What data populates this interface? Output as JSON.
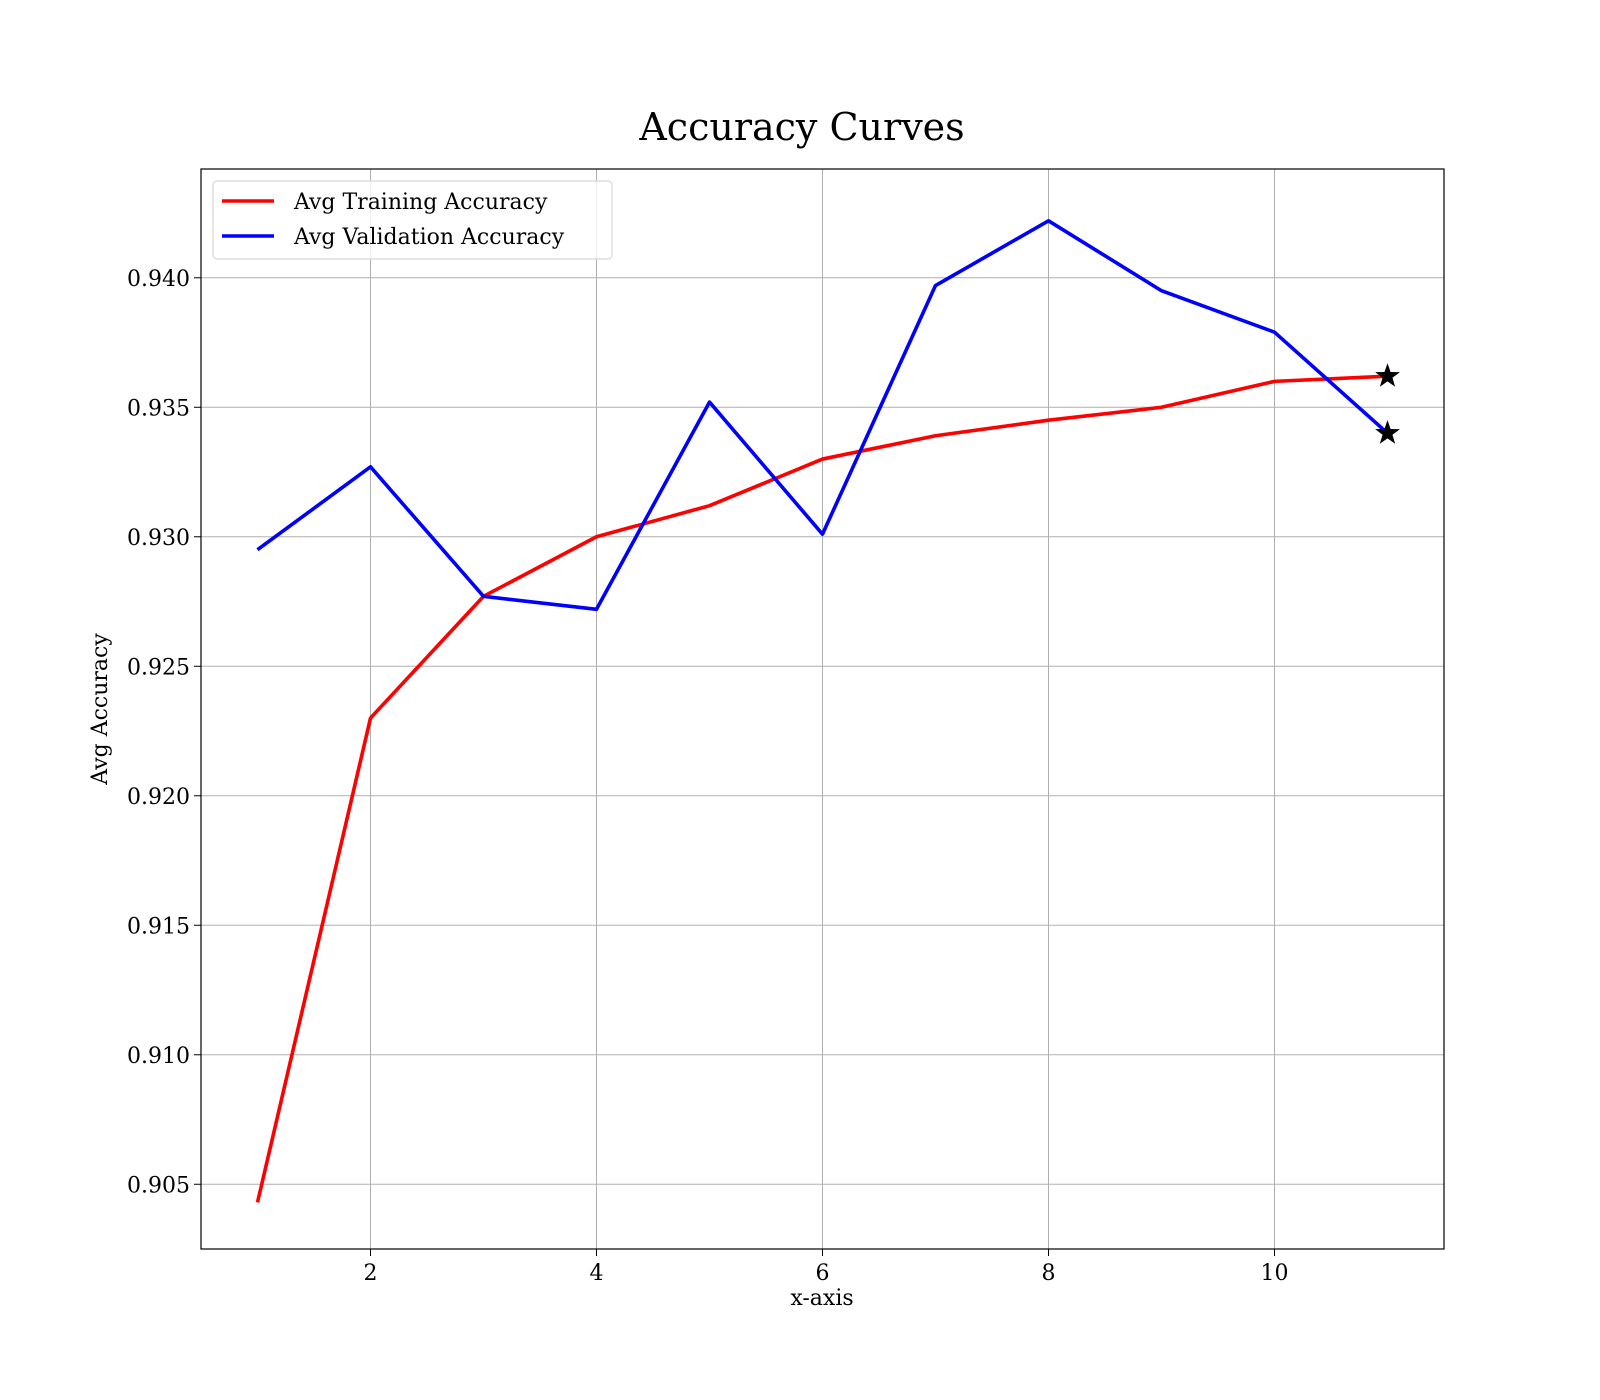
{
  "chart_data": {
    "type": "line",
    "title": "Accuracy Curves",
    "xlabel": "x-axis",
    "ylabel": "Avg Accuracy",
    "xlim": [
      0.5,
      11.5
    ],
    "ylim": [
      0.9025,
      0.9442
    ],
    "xticks": [
      2,
      4,
      6,
      8,
      10
    ],
    "xtick_labels": [
      "2",
      "4",
      "6",
      "8",
      "10"
    ],
    "yticks": [
      0.905,
      0.91,
      0.915,
      0.92,
      0.925,
      0.93,
      0.935,
      0.94
    ],
    "ytick_labels": [
      "0.905",
      "0.910",
      "0.915",
      "0.920",
      "0.925",
      "0.930",
      "0.935",
      "0.940"
    ],
    "grid": true,
    "legend_position": "top-left",
    "x": [
      1,
      2,
      3,
      4,
      5,
      6,
      7,
      8,
      9,
      10,
      11
    ],
    "series": [
      {
        "name": "Avg Training Accuracy",
        "color": "#ff0000",
        "values": [
          0.9043,
          0.923,
          0.9277,
          0.93,
          0.9312,
          0.933,
          0.9339,
          0.9345,
          0.935,
          0.936,
          0.9362
        ],
        "end_marker": "star"
      },
      {
        "name": "Avg Validation Accuracy",
        "color": "#0000ff",
        "values": [
          0.9295,
          0.9327,
          0.9277,
          0.9272,
          0.9352,
          0.9301,
          0.9397,
          0.9422,
          0.9395,
          0.9379,
          0.934
        ],
        "end_marker": "star"
      }
    ],
    "marker_color": "#000000"
  }
}
